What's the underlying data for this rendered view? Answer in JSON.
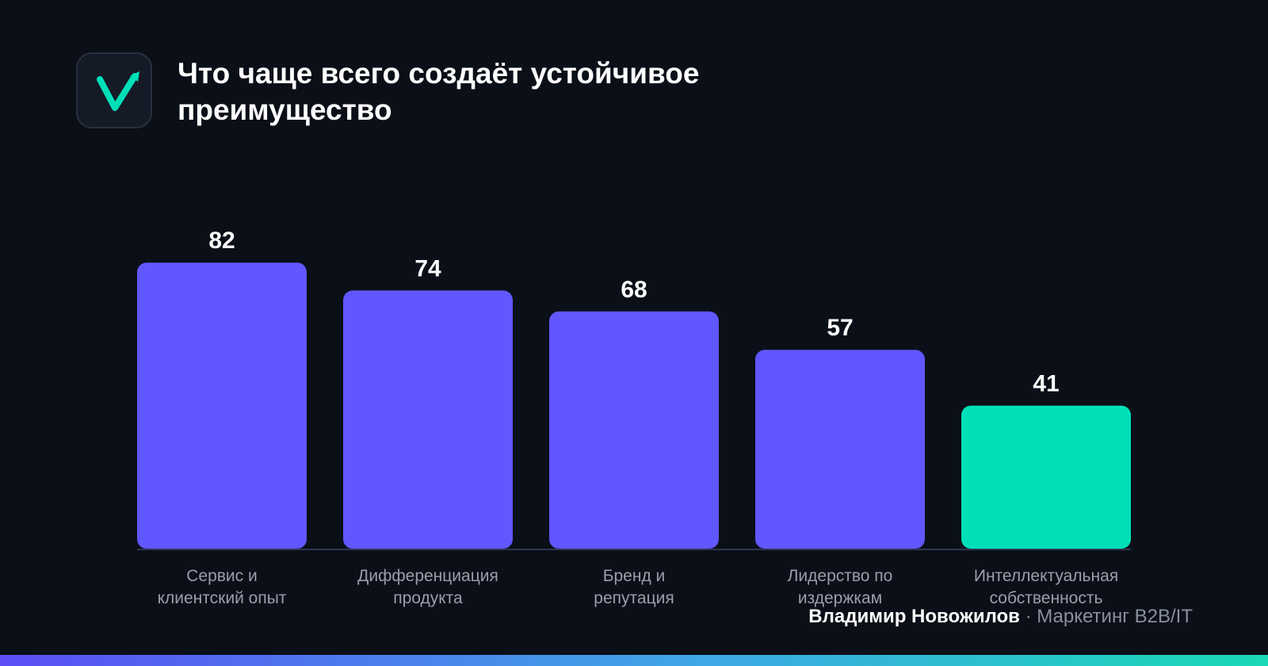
{
  "header": {
    "title": "Что чаще всего создаёт устойчивое преимущество",
    "logo_icon": "checkmark-arrow-icon"
  },
  "chart_data": {
    "type": "bar",
    "title": "Что чаще всего создаёт устойчивое преимущество",
    "categories": [
      [
        "Сервис и",
        "клиентский опыт"
      ],
      [
        "Дифференциация",
        "продукта"
      ],
      [
        "Бренд и",
        "репутация"
      ],
      [
        "Лидерство по",
        "издержкам"
      ],
      [
        "Интеллектуальная",
        "собственность"
      ]
    ],
    "values": [
      82,
      74,
      68,
      57,
      41
    ],
    "colors": [
      "#6157ff",
      "#6157ff",
      "#6157ff",
      "#6157ff",
      "#00e0b8"
    ],
    "ylim": [
      0,
      100
    ],
    "grid": false,
    "xlabel": "",
    "ylabel": ""
  },
  "footer": {
    "author": "Владимир Новожилов",
    "separator": "·",
    "role": "Маркетинг B2B/IT"
  },
  "colors": {
    "background": "#0b0f18",
    "accent_purple": "#6157ff",
    "accent_teal": "#00e0b8"
  }
}
